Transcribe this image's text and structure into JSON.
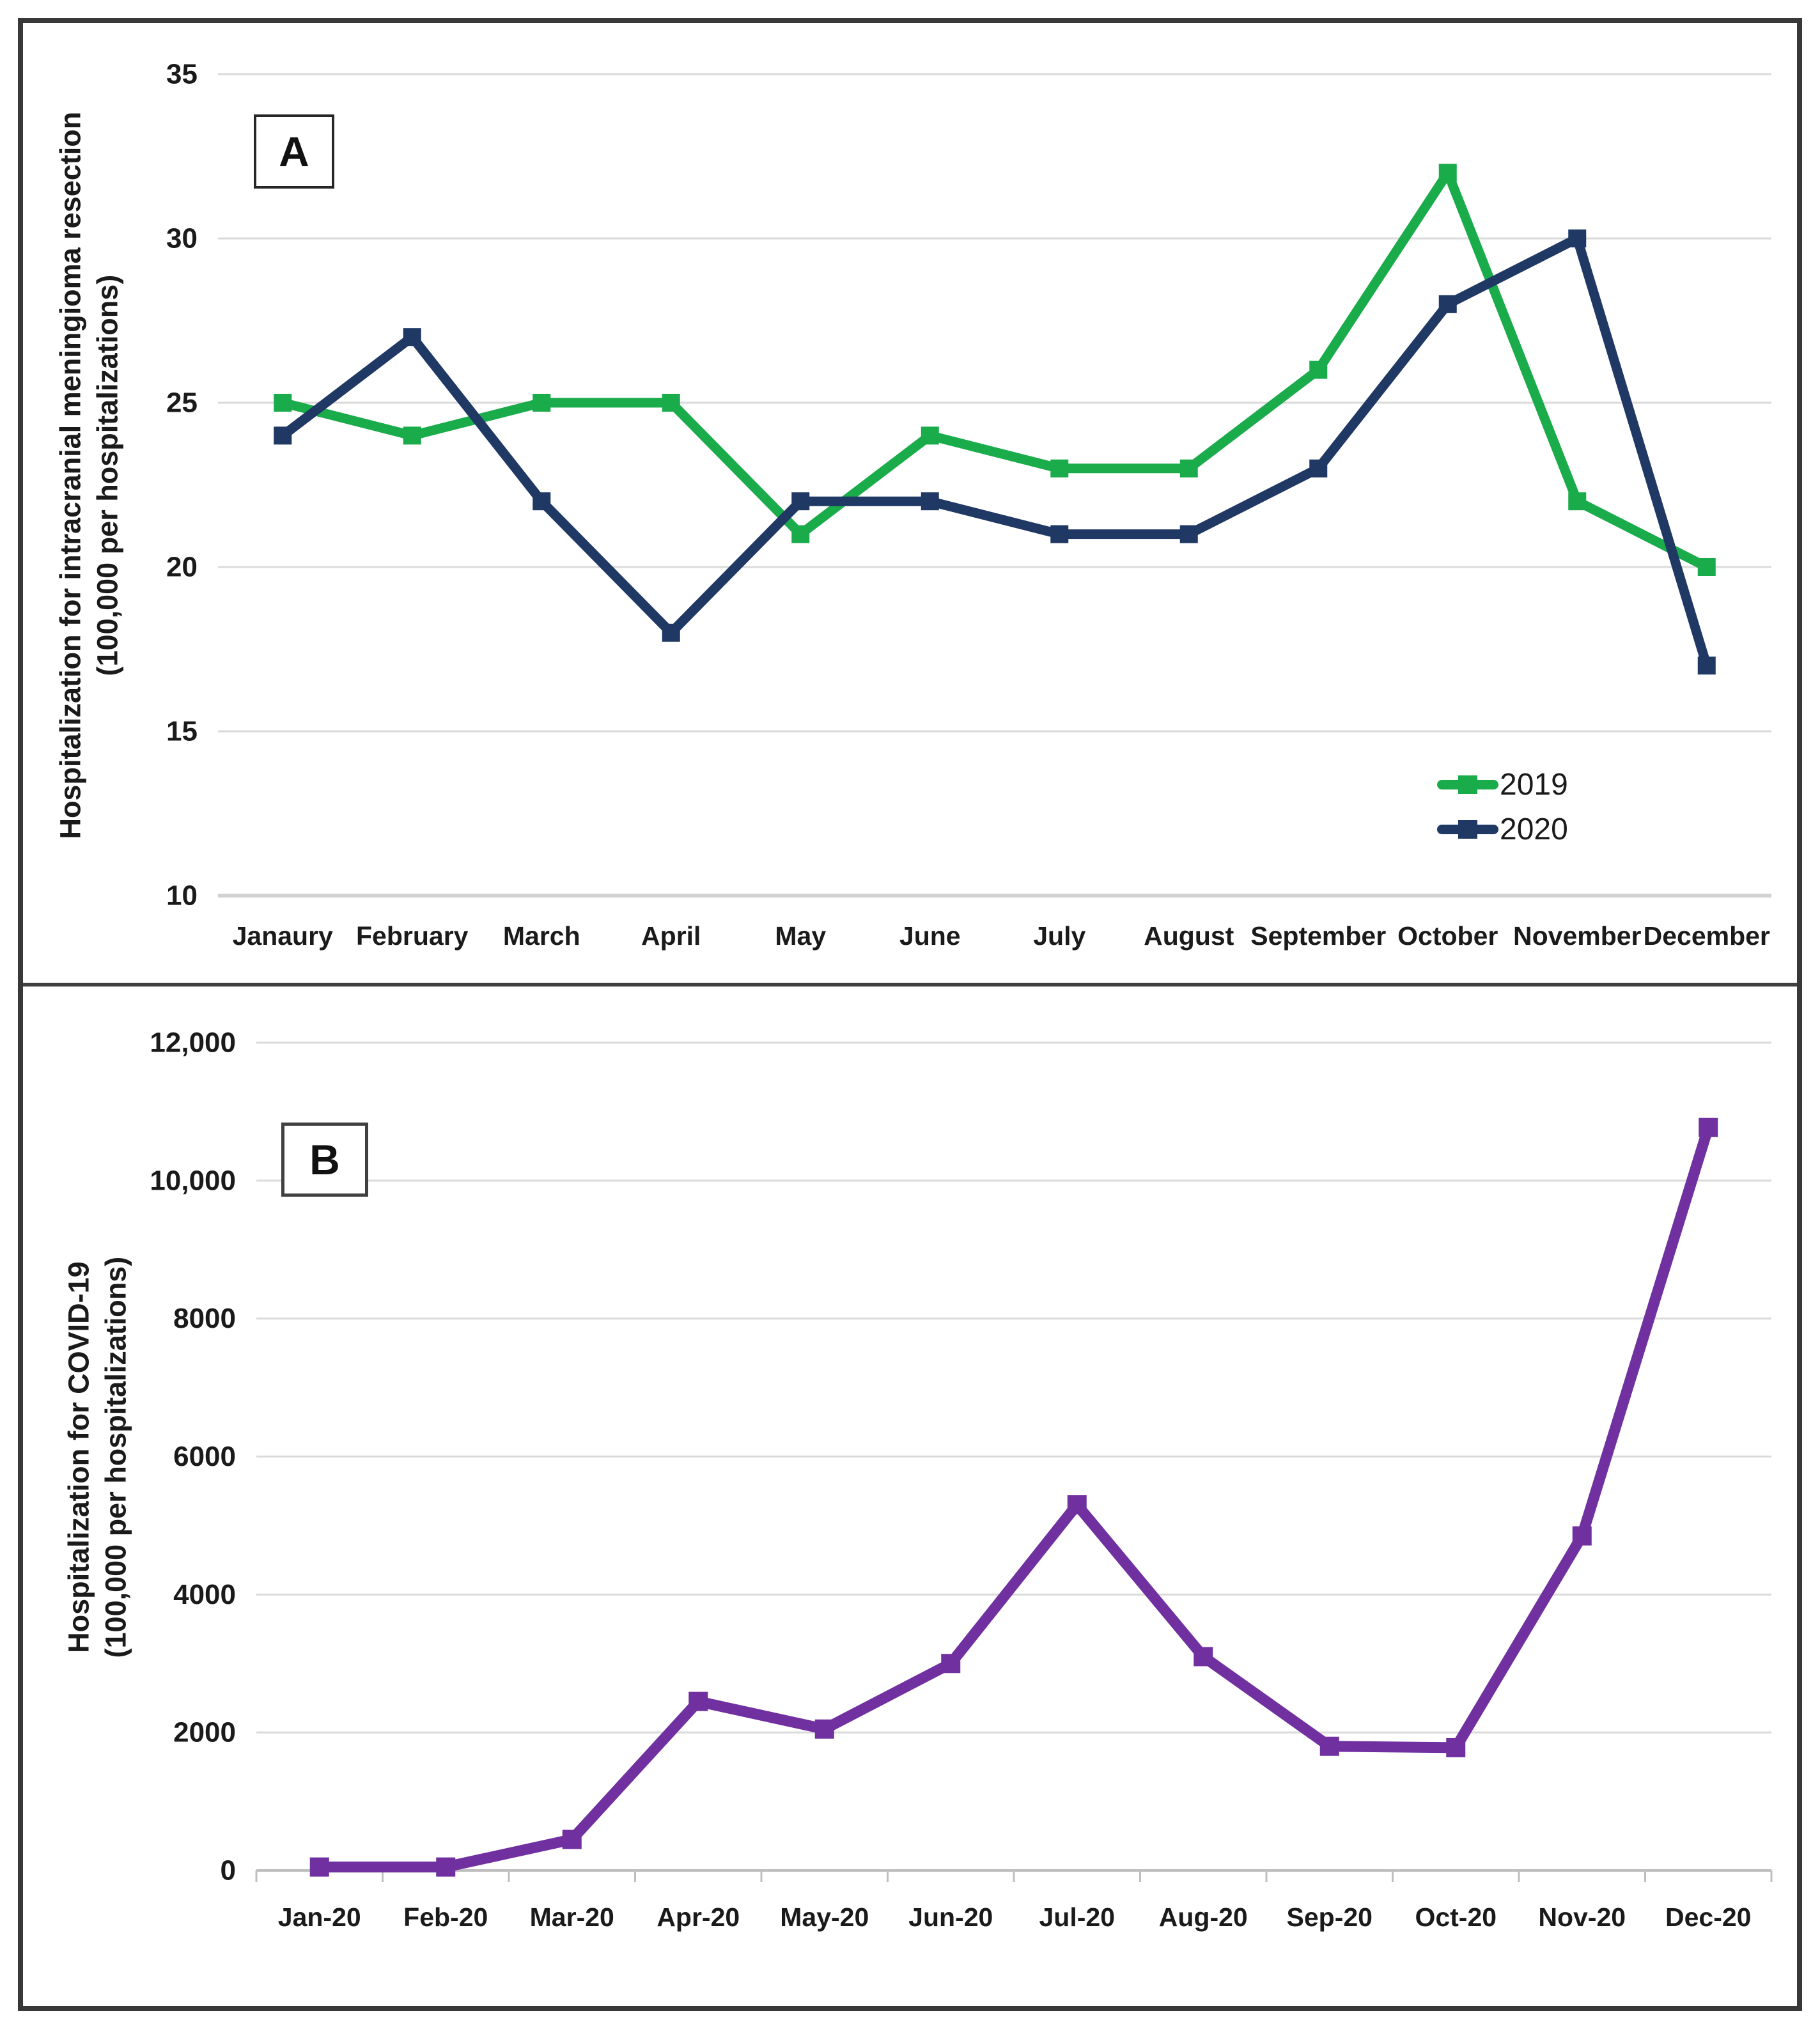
{
  "figure": {
    "panel_a": {
      "panel_label": "A",
      "y_axis_title_line1": "Hospitalization for intracranial meningioma resection",
      "y_axis_title_line2": "(100,000 per hospitalizations)",
      "legend": [
        {
          "label": "2019",
          "color": "#1AAB4B"
        },
        {
          "label": "2020",
          "color": "#1F3864"
        }
      ]
    },
    "panel_b": {
      "panel_label": "B",
      "y_axis_title_line1": "Hospitalization for COVID-19",
      "y_axis_title_line2": "(100,000 per hospitalizations)"
    }
  },
  "chart_data": [
    {
      "type": "line",
      "panel": "A",
      "title": "",
      "categories": [
        "Janaury",
        "February",
        "March",
        "April",
        "May",
        "June",
        "July",
        "August",
        "September",
        "October",
        "November",
        "December"
      ],
      "series": [
        {
          "name": "2019",
          "color": "#1AAB4B",
          "values": [
            25,
            24,
            25,
            25,
            21,
            24,
            23,
            23,
            26,
            32,
            22,
            20
          ]
        },
        {
          "name": "2020",
          "color": "#1F3864",
          "values": [
            24,
            27,
            22,
            18,
            22,
            22,
            21,
            21,
            23,
            28,
            30,
            17
          ]
        }
      ],
      "ylabel": "Hospitalization for intracranial meningioma resection (100,000 per hospitalizations)",
      "xlabel": "",
      "ylim": [
        10,
        35
      ],
      "ytick_step": 5,
      "ytick_labels": [
        "10",
        "15",
        "20",
        "25",
        "30",
        "35"
      ],
      "grid": true,
      "legend_position": "inside-lower-right",
      "marker": "square"
    },
    {
      "type": "line",
      "panel": "B",
      "title": "",
      "categories": [
        "Jan-20",
        "Feb-20",
        "Mar-20",
        "Apr-20",
        "May-20",
        "Jun-20",
        "Jul-20",
        "Aug-20",
        "Sep-20",
        "Oct-20",
        "Nov-20",
        "Dec-20"
      ],
      "series": [
        {
          "name": "COVID-19 hospitalizations",
          "color": "#7030A0",
          "values": [
            50,
            50,
            450,
            2450,
            2050,
            3000,
            5300,
            3100,
            1800,
            1780,
            4850,
            10770
          ]
        }
      ],
      "ylabel": "Hospitalization for COVID-19 (100,000 per hospitalizations)",
      "xlabel": "",
      "ylim": [
        0,
        12000
      ],
      "ytick_step": 2000,
      "ytick_labels": [
        "0",
        "2000",
        "4000",
        "6000",
        "8000",
        "10,000",
        "12,000"
      ],
      "grid": true,
      "legend_position": "none",
      "marker": "square"
    }
  ]
}
